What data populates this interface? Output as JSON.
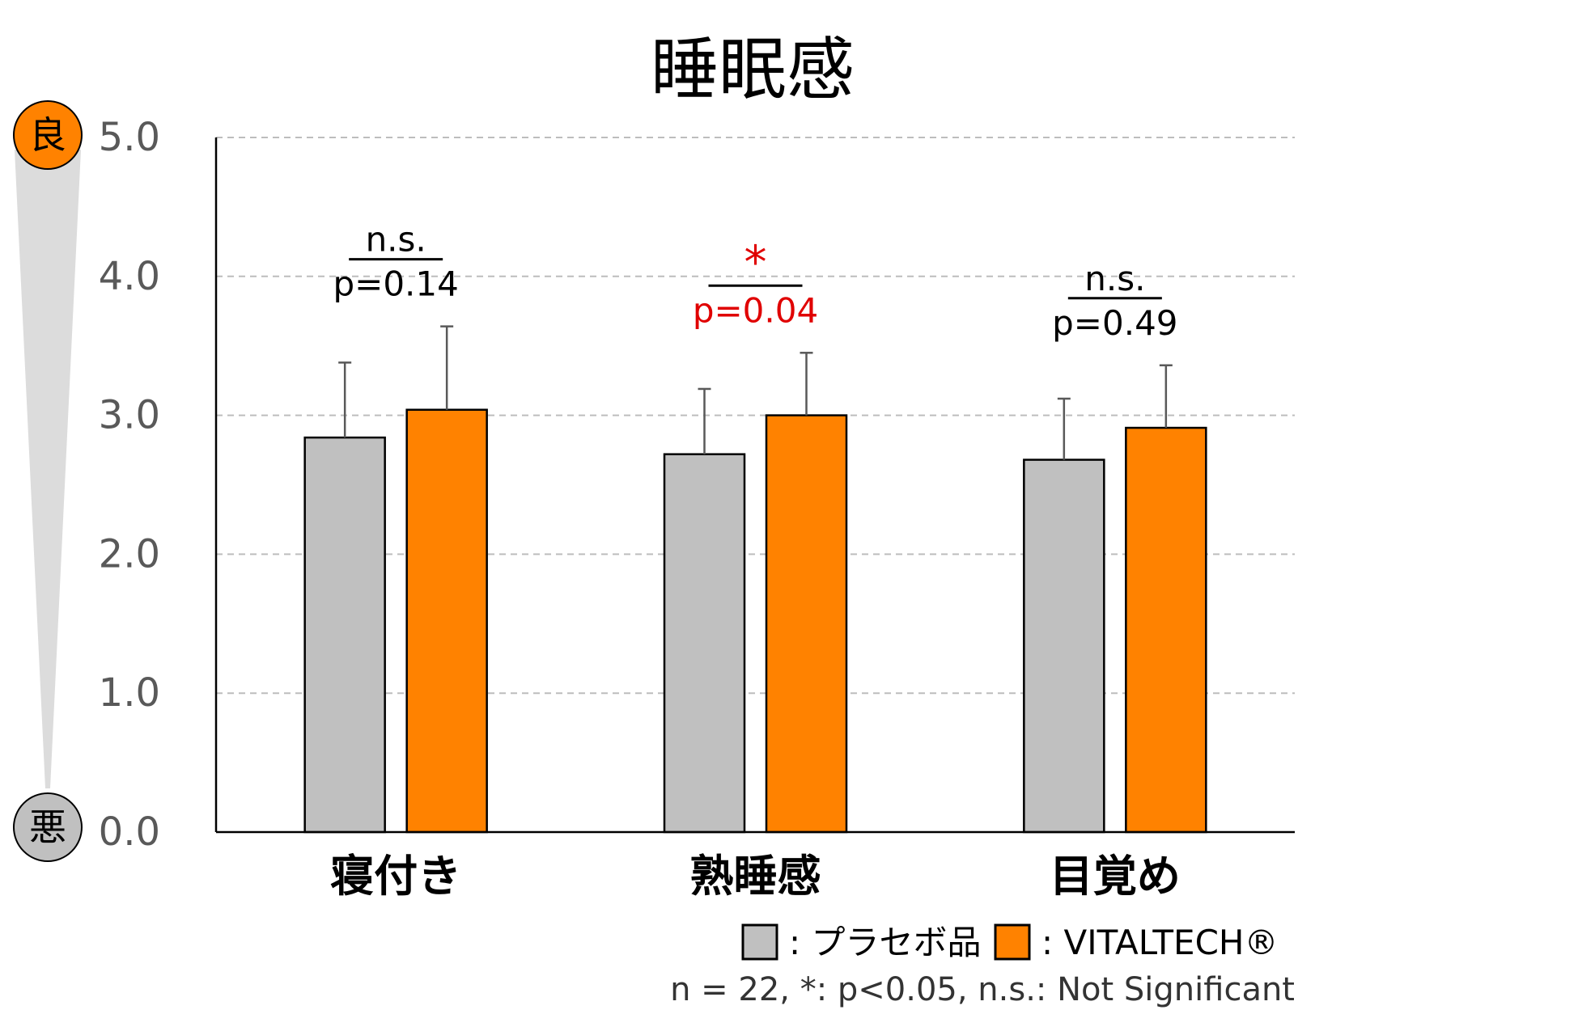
{
  "chart_data": {
    "type": "bar",
    "title": "睡眠感",
    "categories": [
      "寝付き",
      "熟睡感",
      "目覚め"
    ],
    "series": [
      {
        "name": "プラセボ品",
        "values": [
          2.84,
          2.72,
          2.68
        ],
        "errors": [
          0.54,
          0.47,
          0.44
        ],
        "color": "#c0c0c0"
      },
      {
        "name": "VITALTECH®",
        "values": [
          3.04,
          3.0,
          2.91
        ],
        "errors": [
          0.6,
          0.45,
          0.45
        ],
        "color": "#ff8200"
      }
    ],
    "ylim": [
      0,
      5
    ],
    "yticks": [
      "0.0",
      "1.0",
      "2.0",
      "3.0",
      "4.0",
      "5.0"
    ],
    "grid": true,
    "significance": [
      {
        "mark": "n.s.",
        "p": "p=0.14",
        "color": "#000000"
      },
      {
        "mark": "*",
        "p": "p=0.04",
        "color": "#e00000"
      },
      {
        "mark": "n.s.",
        "p": "p=0.49",
        "color": "#000000"
      }
    ],
    "scale": {
      "top_label": "良",
      "bottom_label": "悪",
      "top_color": "#ff8200",
      "bottom_color": "#c0c0c0"
    },
    "note": "n = 22, *: p<0.05, n.s.: Not Significant"
  }
}
